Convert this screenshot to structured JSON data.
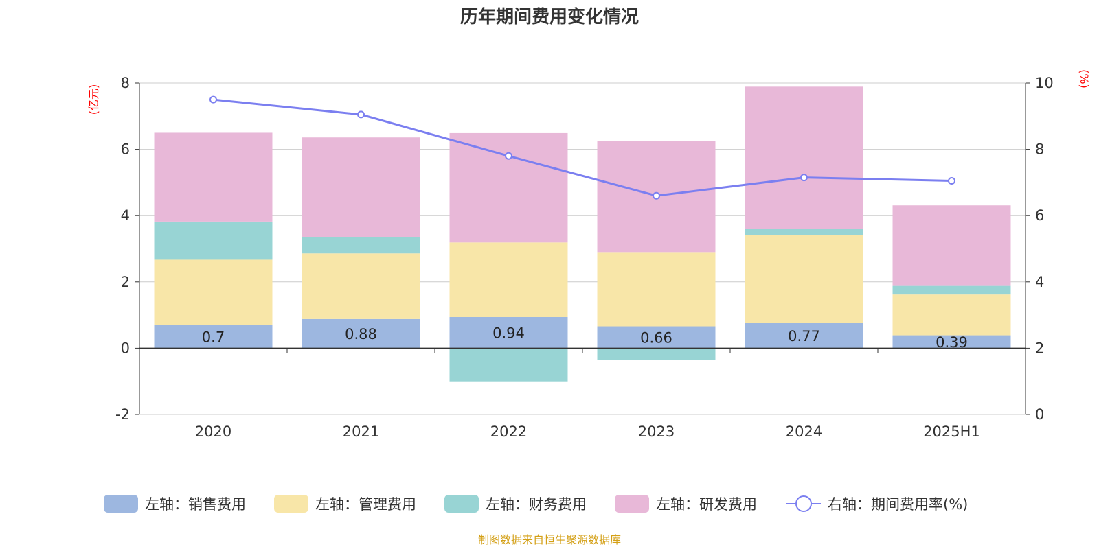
{
  "chart_data": {
    "type": "bar",
    "title": "历年期间费用变化情况",
    "left_axis_unit": "(亿元)",
    "right_axis_unit": "(%)",
    "categories": [
      "2020",
      "2021",
      "2022",
      "2023",
      "2024",
      "2025H1"
    ],
    "ylim": [
      -2,
      8
    ],
    "y_ticks": [
      -2,
      0,
      2,
      4,
      6,
      8
    ],
    "y2lim": [
      0,
      10
    ],
    "y2_ticks": [
      0,
      2,
      4,
      6,
      8,
      10
    ],
    "grid": true,
    "stacked": true,
    "legend_position": "bottom",
    "series": [
      {
        "name": "左轴：销售费用",
        "axis": "left",
        "color": "#9db7e0",
        "values": [
          0.7,
          0.88,
          0.94,
          0.66,
          0.77,
          0.39
        ],
        "labels": [
          "0.7",
          "0.88",
          "0.94",
          "0.66",
          "0.77",
          "0.39"
        ]
      },
      {
        "name": "左轴：管理费用",
        "axis": "left",
        "color": "#f8e6a8",
        "values": [
          1.97,
          1.98,
          2.25,
          2.24,
          2.64,
          1.23
        ]
      },
      {
        "name": "左轴：财务费用",
        "axis": "left",
        "color": "#98d4d4",
        "values": [
          1.15,
          0.5,
          -1.0,
          -0.35,
          0.18,
          0.26
        ]
      },
      {
        "name": "左轴：研发费用",
        "axis": "left",
        "color": "#e8b8d8",
        "values": [
          2.68,
          3.0,
          3.3,
          3.35,
          4.3,
          2.43
        ]
      },
      {
        "name": "右轴：期间费用率(%)",
        "axis": "right",
        "type": "line",
        "color": "#7b7ff0",
        "values": [
          9.5,
          9.05,
          7.8,
          6.6,
          7.15,
          7.05
        ]
      }
    ],
    "source": "制图数据来自恒生聚源数据库"
  }
}
